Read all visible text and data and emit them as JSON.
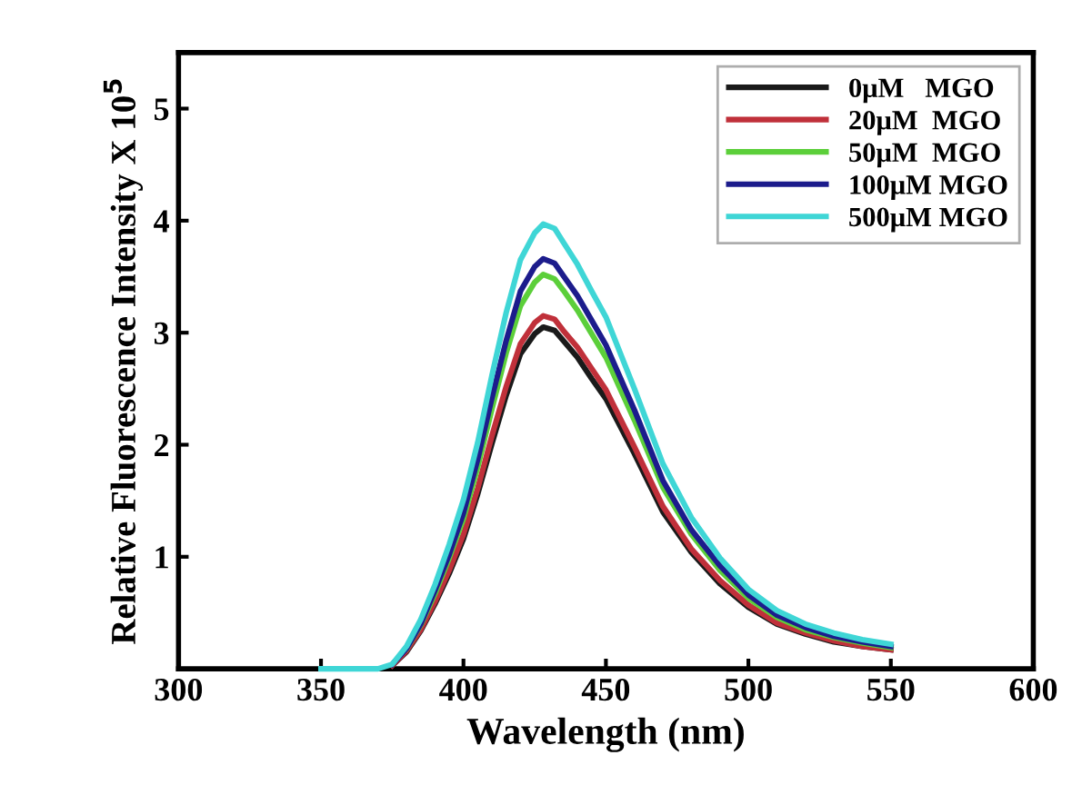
{
  "chart_data": {
    "type": "line",
    "xlabel": "Wavelength (nm)",
    "ylabel": "Relative Fluorescence Intensity X 10$^{5}$",
    "x": [
      350,
      360,
      370,
      375,
      380,
      385,
      390,
      395,
      400,
      405,
      410,
      415,
      420,
      425,
      428,
      432,
      435,
      440,
      445,
      450,
      460,
      470,
      480,
      490,
      500,
      510,
      520,
      530,
      540,
      550
    ],
    "series": [
      {
        "name": "0μM   MGO",
        "color": "#1a1a1a",
        "values": [
          null,
          null,
          null,
          0.03,
          0.15,
          0.34,
          0.58,
          0.85,
          1.16,
          1.56,
          2.01,
          2.44,
          2.81,
          2.99,
          3.05,
          3.02,
          2.93,
          2.78,
          2.59,
          2.41,
          1.92,
          1.4,
          1.04,
          0.76,
          0.55,
          0.4,
          0.31,
          0.24,
          0.2,
          0.17
        ]
      },
      {
        "name": "20μM  MGO",
        "color": "#c0303a",
        "values": [
          null,
          null,
          null,
          0.03,
          0.16,
          0.35,
          0.6,
          0.88,
          1.2,
          1.61,
          2.08,
          2.52,
          2.9,
          3.09,
          3.15,
          3.12,
          3.02,
          2.87,
          2.68,
          2.49,
          1.98,
          1.45,
          1.07,
          0.79,
          0.57,
          0.41,
          0.32,
          0.25,
          0.2,
          0.17
        ]
      },
      {
        "name": "50μM  MGO",
        "color": "#5ccf3a",
        "values": [
          null,
          null,
          null,
          null,
          0.18,
          0.39,
          0.67,
          0.99,
          1.34,
          1.8,
          2.32,
          2.82,
          3.24,
          3.45,
          3.52,
          3.48,
          3.38,
          3.2,
          2.99,
          2.78,
          2.22,
          1.62,
          1.2,
          0.88,
          0.63,
          0.46,
          0.35,
          0.28,
          0.23,
          0.19
        ]
      },
      {
        "name": "100μM MGO",
        "color": "#1c1c8c",
        "values": [
          null,
          null,
          null,
          0.04,
          0.18,
          0.4,
          0.7,
          1.02,
          1.39,
          1.87,
          2.42,
          2.93,
          3.37,
          3.59,
          3.66,
          3.62,
          3.51,
          3.33,
          3.11,
          2.89,
          2.31,
          1.68,
          1.24,
          0.92,
          0.66,
          0.48,
          0.37,
          0.29,
          0.24,
          0.2
        ]
      },
      {
        "name": "500μM MGO",
        "color": "#3fd6d6",
        "values": [
          0,
          0,
          0,
          0.04,
          0.2,
          0.44,
          0.75,
          1.11,
          1.51,
          2.02,
          2.62,
          3.18,
          3.65,
          3.89,
          3.97,
          3.93,
          3.81,
          3.61,
          3.37,
          3.14,
          2.5,
          1.83,
          1.35,
          0.99,
          0.71,
          0.52,
          0.4,
          0.32,
          0.26,
          0.22
        ]
      }
    ],
    "xlim": [
      300,
      600
    ],
    "xticks": [
      300,
      350,
      400,
      450,
      500,
      550,
      600
    ],
    "ylim": [
      0,
      5.5
    ],
    "yticks": [
      1,
      2,
      3,
      4,
      5
    ],
    "legend": "top right",
    "grid": false,
    "marker": "none",
    "line_style": "solid"
  }
}
